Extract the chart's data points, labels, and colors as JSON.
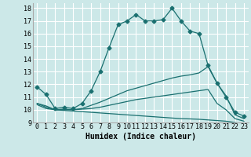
{
  "xlabel": "Humidex (Indice chaleur)",
  "bg_color": "#cce8e8",
  "grid_color": "#ffffff",
  "line_color": "#1a7070",
  "xlim": [
    -0.5,
    23.5
  ],
  "ylim": [
    9,
    18.4
  ],
  "xticks": [
    0,
    1,
    2,
    3,
    4,
    5,
    6,
    7,
    8,
    9,
    10,
    11,
    12,
    13,
    14,
    15,
    16,
    17,
    18,
    19,
    20,
    21,
    22,
    23
  ],
  "yticks": [
    9,
    10,
    11,
    12,
    13,
    14,
    15,
    16,
    17,
    18
  ],
  "line1_x": [
    0,
    1,
    2,
    3,
    4,
    5,
    6,
    7,
    8,
    9,
    10,
    11,
    12,
    13,
    14,
    15,
    16,
    17,
    18,
    19,
    20,
    21,
    22,
    23
  ],
  "line1_y": [
    11.8,
    11.2,
    10.1,
    10.2,
    10.1,
    10.5,
    11.5,
    13.0,
    14.9,
    16.7,
    17.0,
    17.5,
    17.0,
    17.0,
    17.1,
    18.0,
    17.0,
    16.2,
    16.0,
    13.5,
    12.1,
    11.0,
    9.8,
    9.5
  ],
  "line2_x": [
    0,
    1,
    2,
    3,
    4,
    5,
    6,
    7,
    8,
    9,
    10,
    11,
    12,
    13,
    14,
    15,
    16,
    17,
    18,
    19,
    20,
    21,
    22,
    23
  ],
  "line2_y": [
    10.5,
    10.3,
    10.0,
    10.05,
    10.0,
    10.1,
    10.35,
    10.6,
    10.9,
    11.2,
    11.5,
    11.7,
    11.9,
    12.1,
    12.3,
    12.5,
    12.65,
    12.75,
    12.9,
    13.4,
    12.1,
    11.1,
    9.6,
    9.3
  ],
  "line3_x": [
    0,
    1,
    2,
    3,
    4,
    5,
    6,
    7,
    8,
    9,
    10,
    11,
    12,
    13,
    14,
    15,
    16,
    17,
    18,
    19,
    20,
    21,
    22,
    23
  ],
  "line3_y": [
    10.5,
    10.2,
    10.0,
    10.0,
    10.0,
    10.05,
    10.1,
    10.2,
    10.35,
    10.5,
    10.65,
    10.8,
    10.9,
    11.0,
    11.1,
    11.2,
    11.3,
    11.4,
    11.5,
    11.6,
    10.5,
    10.0,
    9.3,
    9.1
  ],
  "line4_x": [
    0,
    1,
    2,
    3,
    4,
    5,
    6,
    7,
    8,
    9,
    10,
    11,
    12,
    13,
    14,
    15,
    16,
    17,
    18,
    19,
    20,
    21,
    22,
    23
  ],
  "line4_y": [
    10.4,
    10.1,
    10.0,
    9.95,
    9.9,
    9.85,
    9.8,
    9.75,
    9.7,
    9.65,
    9.6,
    9.55,
    9.5,
    9.45,
    9.4,
    9.35,
    9.3,
    9.28,
    9.25,
    9.2,
    9.15,
    9.1,
    9.0,
    8.85
  ],
  "tick_fontsize": 6,
  "xlabel_fontsize": 7
}
